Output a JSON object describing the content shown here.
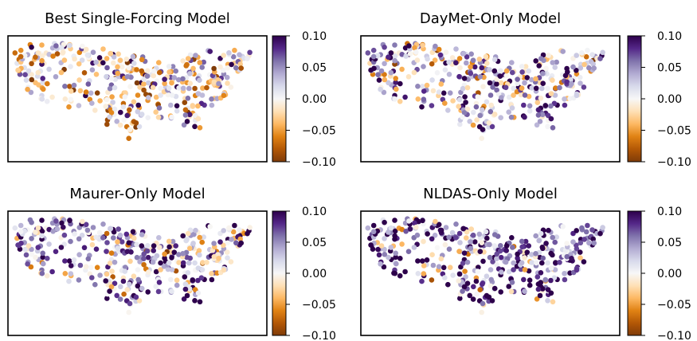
{
  "colormap": {
    "name": "PuOr",
    "stops": [
      "#7f3b08",
      "#b35806",
      "#e08214",
      "#fdb863",
      "#fee0b6",
      "#f7f7f7",
      "#d8daeb",
      "#b2abd2",
      "#8073ac",
      "#542788",
      "#2d004b"
    ]
  },
  "chart_data": [
    {
      "type": "scatter",
      "title": "Best Single-Forcing Model",
      "colorbar": {
        "vmin": -0.1,
        "vmax": 0.1,
        "ticks": [
          "0.10",
          "0.05",
          "0.00",
          "−0.05",
          "−0.10"
        ]
      },
      "color_bias": -0.003,
      "seed": 11
    },
    {
      "type": "scatter",
      "title": "DayMet-Only Model",
      "colorbar": {
        "vmin": -0.1,
        "vmax": 0.1,
        "ticks": [
          "0.10",
          "0.05",
          "0.00",
          "−0.05",
          "−0.10"
        ]
      },
      "color_bias": 0.03,
      "seed": 23
    },
    {
      "type": "scatter",
      "title": "Maurer-Only Model",
      "colorbar": {
        "vmin": -0.1,
        "vmax": 0.1,
        "ticks": [
          "0.10",
          "0.05",
          "0.00",
          "−0.05",
          "−0.10"
        ]
      },
      "color_bias": 0.035,
      "seed": 37
    },
    {
      "type": "scatter",
      "title": "NLDAS-Only Model",
      "colorbar": {
        "vmin": -0.1,
        "vmax": 0.1,
        "ticks": [
          "0.10",
          "0.05",
          "0.00",
          "−0.05",
          "−0.10"
        ]
      },
      "color_bias": 0.065,
      "seed": 53
    }
  ]
}
